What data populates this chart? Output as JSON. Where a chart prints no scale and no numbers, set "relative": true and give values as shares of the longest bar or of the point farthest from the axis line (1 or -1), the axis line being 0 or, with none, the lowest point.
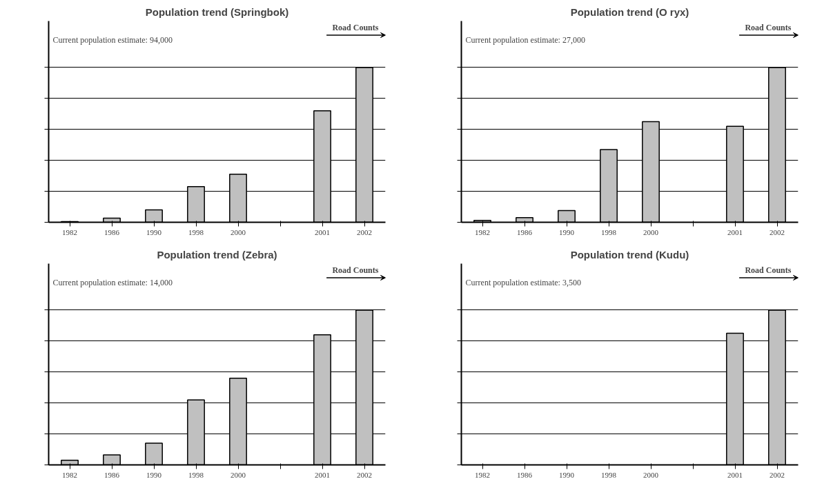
{
  "chart_data": [
    {
      "type": "bar",
      "title": "Population trend (Springbok)",
      "relative": true,
      "grid": "y",
      "color": "#c0c0c0",
      "categories": [
        "1982",
        "1986",
        "1990",
        "1998",
        "2000",
        null,
        "2001",
        "2002"
      ],
      "values": [
        0.005,
        0.027,
        0.08,
        0.23,
        0.31,
        null,
        0.72,
        1
      ],
      "annotations": [
        "Road Counts",
        "Current population estimate:  94,000"
      ]
    },
    {
      "type": "bar",
      "title": "Population trend (O ryx)",
      "relative": true,
      "grid": "y",
      "color": "#c0c0c0",
      "categories": [
        "1982",
        "1986",
        "1990",
        "1998",
        "2000",
        null,
        "2001",
        "2002"
      ],
      "values": [
        0.012,
        0.03,
        0.076,
        0.47,
        0.65,
        null,
        0.62,
        1
      ],
      "annotations": [
        "Road Counts",
        "Current population estimate:  27,000"
      ]
    },
    {
      "type": "bar",
      "title": "Population trend (Zebra)",
      "relative": true,
      "grid": "y",
      "color": "#c0c0c0",
      "categories": [
        "1982",
        "1986",
        "1990",
        "1998",
        "2000",
        null,
        "2001",
        "2002"
      ],
      "values": [
        0.03,
        0.065,
        0.14,
        0.42,
        0.56,
        null,
        0.84,
        1
      ],
      "annotations": [
        "Road Counts",
        "Current population estimate:  14,000"
      ]
    },
    {
      "type": "bar",
      "title": "Population trend (Kudu)",
      "relative": true,
      "grid": "y",
      "color": "#c0c0c0",
      "categories": [
        "1982",
        "1986",
        "1990",
        "1998",
        "2000",
        null,
        "2001",
        "2002"
      ],
      "values": [
        null,
        null,
        null,
        null,
        null,
        null,
        0.85,
        1
      ],
      "annotations": [
        "Road Counts",
        "Current population estimate:  3,500"
      ]
    }
  ]
}
